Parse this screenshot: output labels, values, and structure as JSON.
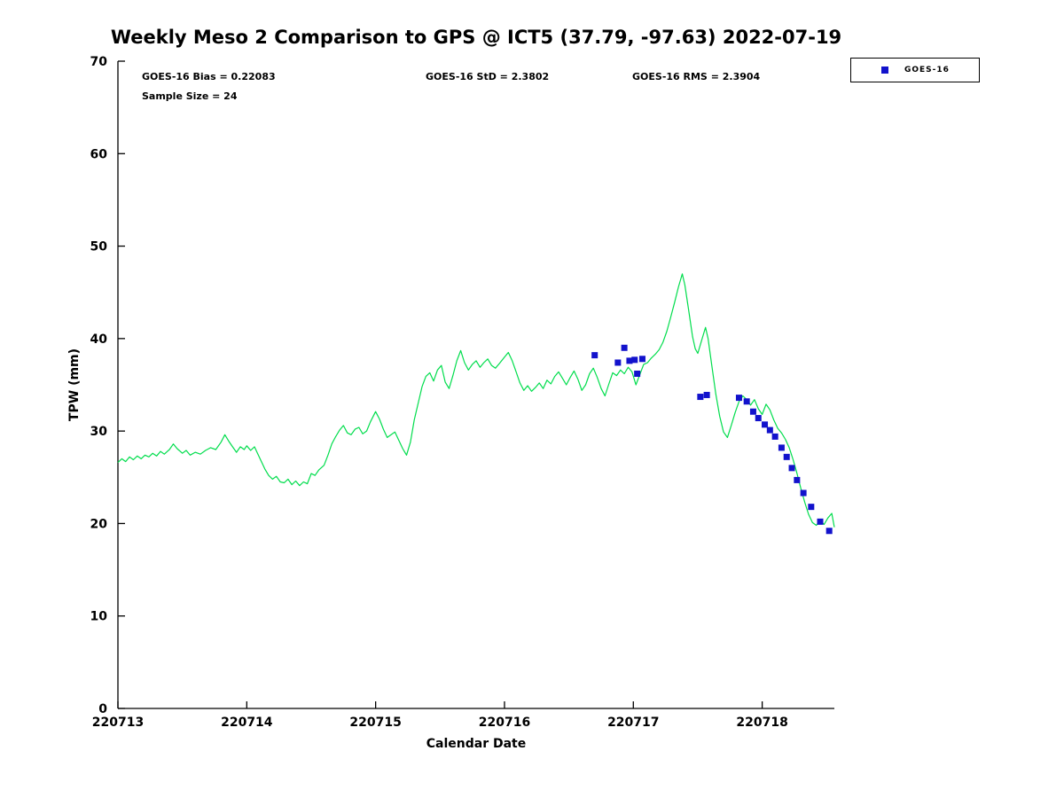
{
  "title": "Weekly Meso 2 Comparison to GPS @ ICT5 (37.79, -97.63) 2022-07-19",
  "annotations": {
    "bias": "GOES-16 Bias = 0.22083",
    "std": "GOES-16 StD = 2.3802",
    "rms": "GOES-16 RMS = 2.3904",
    "sample": "Sample Size = 24"
  },
  "legend": {
    "label": "GOES-16",
    "marker_color": "#1212cc"
  },
  "chart_data": {
    "type": "line",
    "title": "Weekly Meso 2 Comparison to GPS @ ICT5 (37.79, -97.63) 2022-07-19",
    "xlabel": "Calendar Date",
    "ylabel": "TPW (mm)",
    "xlim": [
      220713,
      220718.56
    ],
    "ylim": [
      0,
      70
    ],
    "xticks": [
      220713,
      220714,
      220715,
      220716,
      220717,
      220718
    ],
    "yticks": [
      0,
      10,
      20,
      30,
      40,
      50,
      60,
      70
    ],
    "grid": false,
    "legend_position": "top-right-outside",
    "stats": {
      "bias": 0.22083,
      "std": 2.3802,
      "rms": 2.3904,
      "sample_size": 24
    },
    "series": [
      {
        "name": "GPS",
        "style": "line",
        "color": "#00dd4c",
        "points": [
          [
            220713.0,
            26.6
          ],
          [
            220713.03,
            27.0
          ],
          [
            220713.06,
            26.7
          ],
          [
            220713.09,
            27.2
          ],
          [
            220713.12,
            26.9
          ],
          [
            220713.15,
            27.3
          ],
          [
            220713.18,
            27.0
          ],
          [
            220713.21,
            27.4
          ],
          [
            220713.24,
            27.2
          ],
          [
            220713.27,
            27.6
          ],
          [
            220713.3,
            27.3
          ],
          [
            220713.33,
            27.8
          ],
          [
            220713.36,
            27.5
          ],
          [
            220713.4,
            28.0
          ],
          [
            220713.43,
            28.6
          ],
          [
            220713.46,
            28.1
          ],
          [
            220713.5,
            27.6
          ],
          [
            220713.53,
            27.9
          ],
          [
            220713.56,
            27.4
          ],
          [
            220713.6,
            27.7
          ],
          [
            220713.64,
            27.5
          ],
          [
            220713.68,
            27.9
          ],
          [
            220713.72,
            28.2
          ],
          [
            220713.76,
            28.0
          ],
          [
            220713.8,
            28.8
          ],
          [
            220713.83,
            29.6
          ],
          [
            220713.86,
            28.9
          ],
          [
            220713.89,
            28.3
          ],
          [
            220713.92,
            27.7
          ],
          [
            220713.95,
            28.3
          ],
          [
            220713.98,
            28.0
          ],
          [
            220714.0,
            28.4
          ],
          [
            220714.03,
            27.9
          ],
          [
            220714.06,
            28.3
          ],
          [
            220714.08,
            27.7
          ],
          [
            220714.11,
            26.8
          ],
          [
            220714.14,
            25.9
          ],
          [
            220714.17,
            25.2
          ],
          [
            220714.2,
            24.8
          ],
          [
            220714.23,
            25.1
          ],
          [
            220714.26,
            24.5
          ],
          [
            220714.29,
            24.4
          ],
          [
            220714.32,
            24.8
          ],
          [
            220714.35,
            24.2
          ],
          [
            220714.38,
            24.6
          ],
          [
            220714.41,
            24.1
          ],
          [
            220714.44,
            24.5
          ],
          [
            220714.47,
            24.3
          ],
          [
            220714.5,
            25.4
          ],
          [
            220714.53,
            25.2
          ],
          [
            220714.56,
            25.8
          ],
          [
            220714.6,
            26.3
          ],
          [
            220714.63,
            27.4
          ],
          [
            220714.66,
            28.6
          ],
          [
            220714.69,
            29.4
          ],
          [
            220714.72,
            30.1
          ],
          [
            220714.75,
            30.6
          ],
          [
            220714.78,
            29.8
          ],
          [
            220714.81,
            29.6
          ],
          [
            220714.84,
            30.2
          ],
          [
            220714.87,
            30.4
          ],
          [
            220714.9,
            29.7
          ],
          [
            220714.93,
            30.0
          ],
          [
            220714.96,
            31.0
          ],
          [
            220715.0,
            32.1
          ],
          [
            220715.03,
            31.3
          ],
          [
            220715.06,
            30.2
          ],
          [
            220715.09,
            29.3
          ],
          [
            220715.12,
            29.6
          ],
          [
            220715.15,
            29.9
          ],
          [
            220715.18,
            29.0
          ],
          [
            220715.21,
            28.1
          ],
          [
            220715.24,
            27.4
          ],
          [
            220715.27,
            28.8
          ],
          [
            220715.3,
            31.2
          ],
          [
            220715.33,
            33.0
          ],
          [
            220715.36,
            34.8
          ],
          [
            220715.39,
            35.9
          ],
          [
            220715.42,
            36.3
          ],
          [
            220715.45,
            35.4
          ],
          [
            220715.48,
            36.6
          ],
          [
            220715.51,
            37.1
          ],
          [
            220715.54,
            35.3
          ],
          [
            220715.57,
            34.6
          ],
          [
            220715.6,
            36.0
          ],
          [
            220715.63,
            37.6
          ],
          [
            220715.66,
            38.7
          ],
          [
            220715.69,
            37.4
          ],
          [
            220715.72,
            36.6
          ],
          [
            220715.75,
            37.2
          ],
          [
            220715.78,
            37.6
          ],
          [
            220715.81,
            36.9
          ],
          [
            220715.84,
            37.4
          ],
          [
            220715.87,
            37.8
          ],
          [
            220715.9,
            37.1
          ],
          [
            220715.93,
            36.8
          ],
          [
            220715.96,
            37.3
          ],
          [
            220716.0,
            38.0
          ],
          [
            220716.03,
            38.5
          ],
          [
            220716.06,
            37.6
          ],
          [
            220716.09,
            36.4
          ],
          [
            220716.12,
            35.2
          ],
          [
            220716.15,
            34.4
          ],
          [
            220716.18,
            34.9
          ],
          [
            220716.21,
            34.3
          ],
          [
            220716.24,
            34.7
          ],
          [
            220716.27,
            35.2
          ],
          [
            220716.3,
            34.6
          ],
          [
            220716.33,
            35.5
          ],
          [
            220716.36,
            35.1
          ],
          [
            220716.39,
            35.9
          ],
          [
            220716.42,
            36.4
          ],
          [
            220716.45,
            35.7
          ],
          [
            220716.48,
            35.0
          ],
          [
            220716.51,
            35.8
          ],
          [
            220716.54,
            36.5
          ],
          [
            220716.57,
            35.6
          ],
          [
            220716.6,
            34.4
          ],
          [
            220716.63,
            35.0
          ],
          [
            220716.66,
            36.2
          ],
          [
            220716.69,
            36.8
          ],
          [
            220716.72,
            35.8
          ],
          [
            220716.75,
            34.6
          ],
          [
            220716.78,
            33.8
          ],
          [
            220716.81,
            35.1
          ],
          [
            220716.84,
            36.3
          ],
          [
            220716.87,
            36.0
          ],
          [
            220716.9,
            36.6
          ],
          [
            220716.93,
            36.2
          ],
          [
            220716.96,
            36.9
          ],
          [
            220716.99,
            36.4
          ],
          [
            220717.02,
            35.0
          ],
          [
            220717.05,
            36.1
          ],
          [
            220717.08,
            37.2
          ],
          [
            220717.11,
            37.4
          ],
          [
            220717.14,
            37.9
          ],
          [
            220717.17,
            38.3
          ],
          [
            220717.2,
            38.8
          ],
          [
            220717.23,
            39.6
          ],
          [
            220717.26,
            40.8
          ],
          [
            220717.29,
            42.3
          ],
          [
            220717.32,
            43.9
          ],
          [
            220717.35,
            45.6
          ],
          [
            220717.38,
            47.0
          ],
          [
            220717.4,
            45.8
          ],
          [
            220717.43,
            43.0
          ],
          [
            220717.46,
            40.2
          ],
          [
            220717.48,
            38.9
          ],
          [
            220717.5,
            38.4
          ],
          [
            220717.53,
            39.8
          ],
          [
            220717.56,
            41.2
          ],
          [
            220717.58,
            40.0
          ],
          [
            220717.61,
            37.0
          ],
          [
            220717.64,
            34.0
          ],
          [
            220717.67,
            31.6
          ],
          [
            220717.7,
            29.9
          ],
          [
            220717.73,
            29.3
          ],
          [
            220717.76,
            30.6
          ],
          [
            220717.79,
            32.0
          ],
          [
            220717.82,
            33.2
          ],
          [
            220717.85,
            33.8
          ],
          [
            220717.88,
            33.4
          ],
          [
            220717.91,
            32.8
          ],
          [
            220717.94,
            33.4
          ],
          [
            220717.97,
            32.4
          ],
          [
            220718.0,
            31.8
          ],
          [
            220718.03,
            32.9
          ],
          [
            220718.06,
            32.3
          ],
          [
            220718.09,
            31.2
          ],
          [
            220718.12,
            30.3
          ],
          [
            220718.15,
            29.8
          ],
          [
            220718.18,
            29.1
          ],
          [
            220718.21,
            28.2
          ],
          [
            220718.24,
            26.9
          ],
          [
            220718.27,
            25.4
          ],
          [
            220718.3,
            23.8
          ],
          [
            220718.33,
            22.3
          ],
          [
            220718.36,
            21.0
          ],
          [
            220718.39,
            20.1
          ],
          [
            220718.42,
            19.8
          ],
          [
            220718.45,
            20.4
          ],
          [
            220718.48,
            19.9
          ],
          [
            220718.51,
            20.6
          ],
          [
            220718.54,
            21.1
          ],
          [
            220718.56,
            19.6
          ]
        ]
      },
      {
        "name": "GOES-16",
        "style": "scatter",
        "marker": "square",
        "color": "#1212cc",
        "points": [
          [
            220716.7,
            38.2
          ],
          [
            220716.88,
            37.4
          ],
          [
            220716.93,
            39.0
          ],
          [
            220716.97,
            37.6
          ],
          [
            220717.01,
            37.7
          ],
          [
            220717.03,
            36.2
          ],
          [
            220717.07,
            37.8
          ],
          [
            220717.52,
            33.7
          ],
          [
            220717.57,
            33.9
          ],
          [
            220717.82,
            33.6
          ],
          [
            220717.88,
            33.2
          ],
          [
            220717.93,
            32.1
          ],
          [
            220717.97,
            31.4
          ],
          [
            220718.02,
            30.7
          ],
          [
            220718.06,
            30.1
          ],
          [
            220718.1,
            29.4
          ],
          [
            220718.15,
            28.2
          ],
          [
            220718.19,
            27.2
          ],
          [
            220718.23,
            26.0
          ],
          [
            220718.27,
            24.7
          ],
          [
            220718.32,
            23.3
          ],
          [
            220718.38,
            21.8
          ],
          [
            220718.45,
            20.2
          ],
          [
            220718.52,
            19.2
          ]
        ]
      }
    ]
  }
}
